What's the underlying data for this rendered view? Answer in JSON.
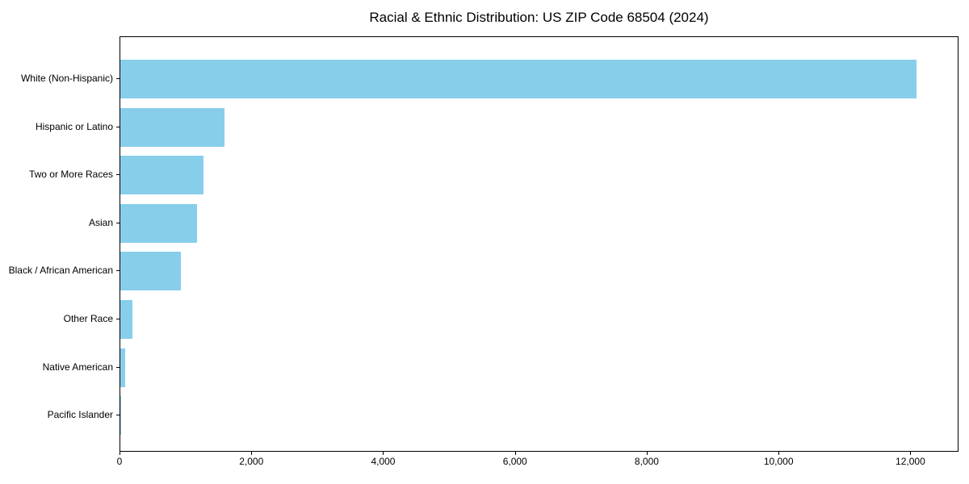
{
  "page": {
    "background": "#ffffff"
  },
  "chart_data": {
    "type": "bar",
    "orientation": "horizontal",
    "title": "Racial & Ethnic Distribution: US ZIP Code 68504 (2024)",
    "categories": [
      "White (Non-Hispanic)",
      "Hispanic or Latino",
      "Two or More Races",
      "Asian",
      "Black / African American",
      "Other Race",
      "Native American",
      "Pacific Islander"
    ],
    "values": [
      12100,
      1580,
      1260,
      1170,
      920,
      180,
      75,
      10
    ],
    "xlabel": "",
    "ylabel": "",
    "xlim": [
      0,
      12730
    ],
    "x_ticks": [
      0,
      2000,
      4000,
      6000,
      8000,
      10000,
      12000
    ],
    "x_tick_labels": [
      "0",
      "2,000",
      "4,000",
      "6,000",
      "8,000",
      "10,000",
      "12,000"
    ],
    "bar_color": "#87CEEB",
    "text_color": "#000000",
    "spine_color": "#000000",
    "grid": false,
    "legend": null
  }
}
